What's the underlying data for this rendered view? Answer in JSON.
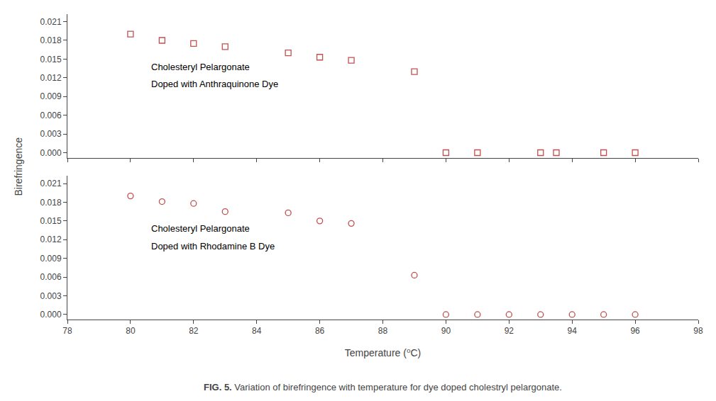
{
  "chart_data": [
    {
      "type": "scatter",
      "title": "FIG. 5.",
      "subtitle": "Variation of birefringence with temperature for dye doped cholestryl pelargonate.",
      "ylabel": "Birefringence",
      "x": [
        80,
        81,
        82,
        83,
        85,
        86,
        87,
        89,
        90,
        91,
        93,
        93.5,
        95,
        96
      ],
      "values": [
        0.019,
        0.018,
        0.0175,
        0.017,
        0.016,
        0.0153,
        0.0148,
        0.013,
        0.0,
        0.0,
        0.0,
        0.0,
        0.0,
        0.0
      ],
      "color": "#c0504d",
      "marker": "square",
      "annotations": [
        "Cholesteryl Pelargonate",
        "Doped with Anthraquinone Dye"
      ],
      "xlim": [
        78,
        98
      ],
      "xticks": [
        78,
        80,
        82,
        84,
        86,
        88,
        90,
        92,
        94,
        96,
        98
      ],
      "ylim": [
        -0.0008,
        0.0222
      ],
      "yticks": [
        {
          "value": 0.0,
          "label": "0.000"
        },
        0.003,
        0.006,
        0.009,
        0.012,
        0.015,
        0.018,
        0.021
      ],
      "tick_labels": "y",
      "grid": false
    },
    {
      "type": "scatter",
      "xlabel": "Temperature (⁰C)",
      "x": [
        80,
        81,
        82,
        83,
        85,
        86,
        87,
        89,
        90,
        91,
        92,
        93,
        94,
        95,
        96
      ],
      "values": [
        0.019,
        0.0181,
        0.0178,
        0.0165,
        0.0163,
        0.015,
        0.0146,
        0.0063,
        0.0,
        0.0,
        0.0,
        0.0,
        0.0,
        0.0,
        0.0
      ],
      "color": "#c0504d",
      "marker": "circle",
      "annotations": [
        "Cholesteryl Pelargonate",
        "Doped with Rhodamine B Dye"
      ],
      "xlim": [
        78,
        98
      ],
      "xticks": [
        78,
        80,
        82,
        84,
        86,
        88,
        90,
        92,
        94,
        96,
        98
      ],
      "ylim": [
        -0.0008,
        0.0222
      ],
      "yticks": [
        {
          "value": 0.0,
          "label": "0.000"
        },
        0.003,
        0.006,
        0.009,
        0.012,
        0.015,
        0.018,
        0.021
      ],
      "grid": false
    }
  ]
}
